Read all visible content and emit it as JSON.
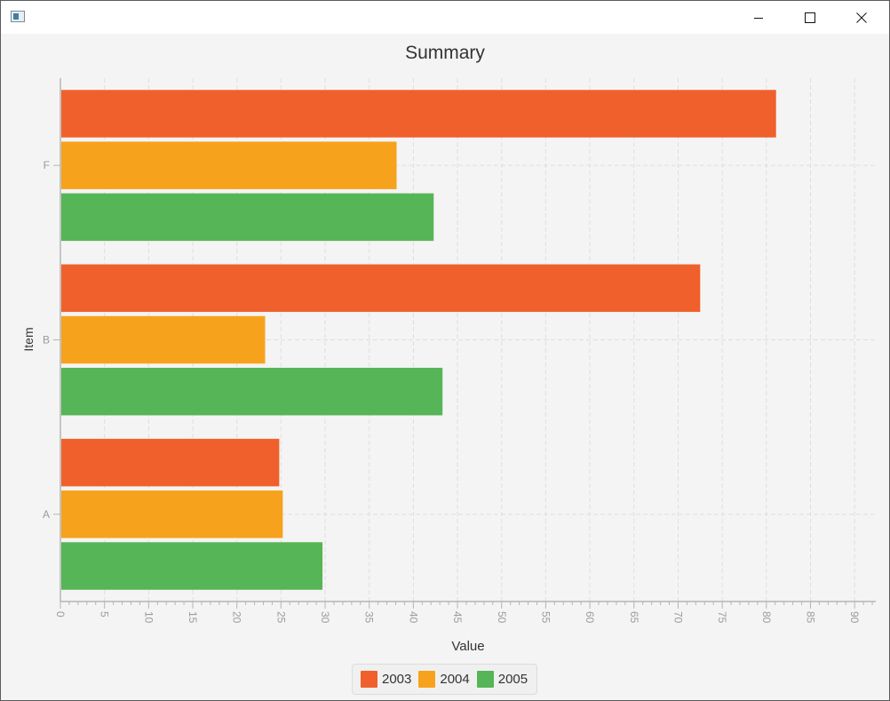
{
  "window": {
    "title": "",
    "controls": [
      "minimize",
      "maximize",
      "close"
    ]
  },
  "chart_data": {
    "type": "bar",
    "orientation": "horizontal",
    "title": "Summary",
    "xlabel": "Value",
    "ylabel": "Item",
    "categories": [
      "A",
      "B",
      "F"
    ],
    "series": [
      {
        "name": "2003",
        "color": "#f0602c",
        "values": [
          24.8,
          72.5,
          81.1
        ]
      },
      {
        "name": "2004",
        "color": "#f7a21c",
        "values": [
          25.2,
          23.2,
          38.1
        ]
      },
      {
        "name": "2005",
        "color": "#56b556",
        "values": [
          29.7,
          43.3,
          42.3
        ]
      }
    ],
    "xlim": [
      0,
      92
    ],
    "x_ticks": [
      0,
      5,
      10,
      15,
      20,
      25,
      30,
      35,
      40,
      45,
      50,
      55,
      60,
      65,
      70,
      75,
      80,
      85,
      90
    ],
    "grid": true,
    "legend_position": "bottom-center"
  }
}
